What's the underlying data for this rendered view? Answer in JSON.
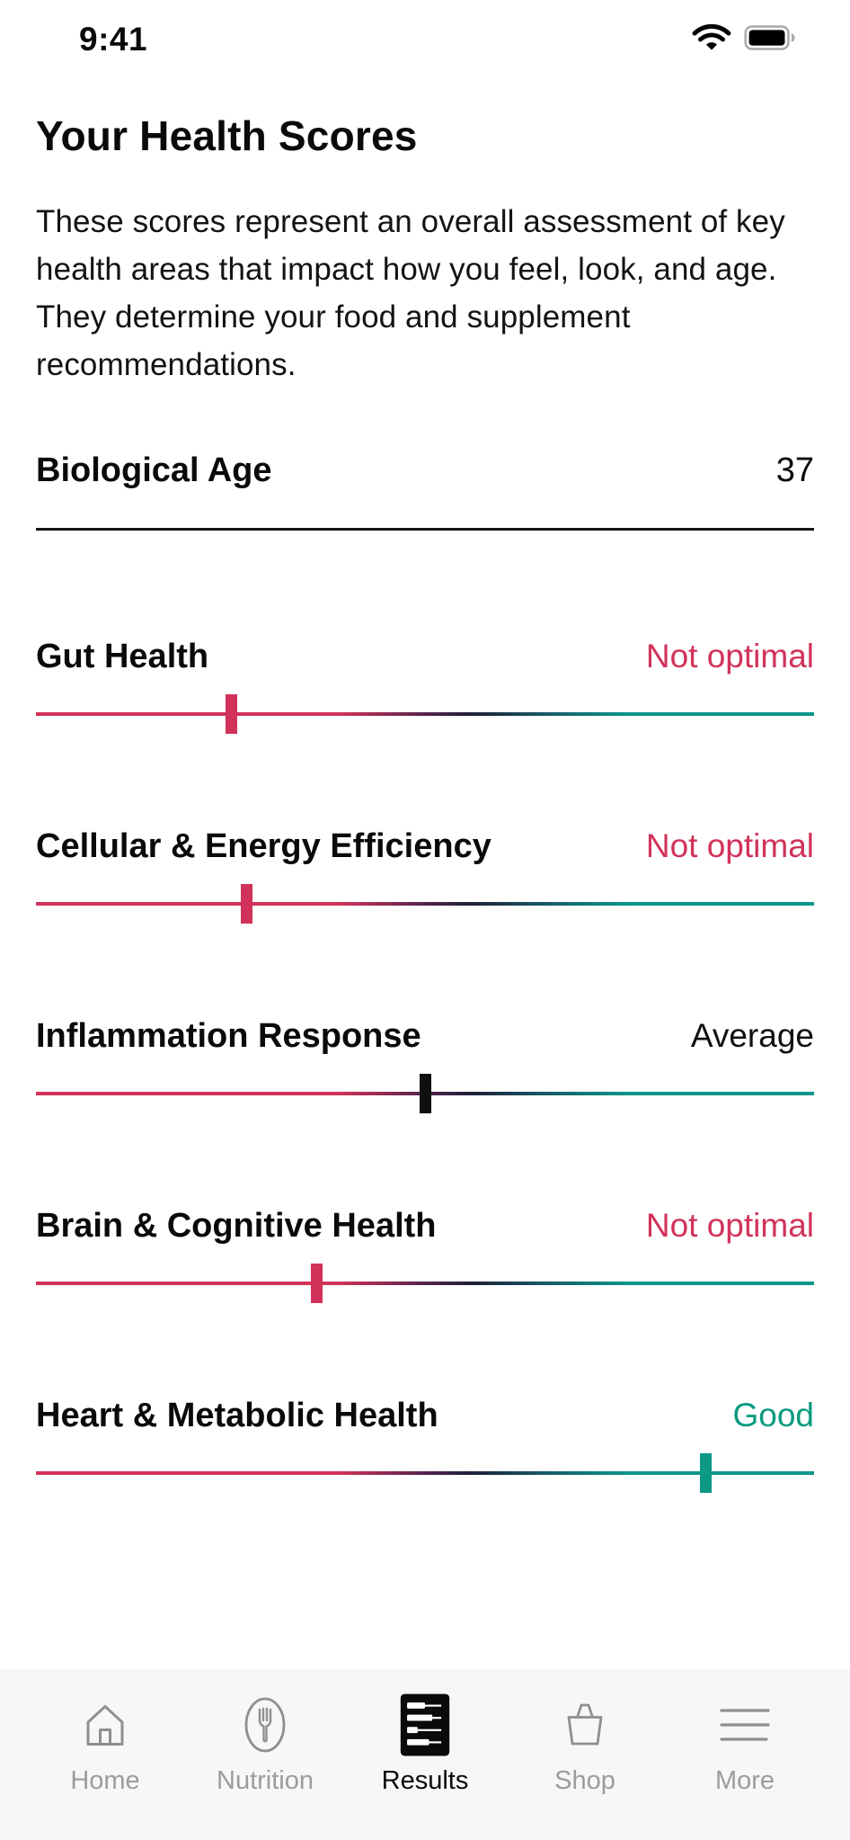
{
  "status_bar": {
    "time": "9:41"
  },
  "page": {
    "title": "Your Health Scores",
    "description": "These scores represent an overall assessment of key health areas that impact how you feel, look, and age. They determine your food and supplement recommendations."
  },
  "biological_age": {
    "label": "Biological Age",
    "value": "37"
  },
  "scores": [
    {
      "label": "Gut Health",
      "status": "Not optimal",
      "status_color": "#d13259",
      "marker_pct": 25,
      "marker_color": "#d13259"
    },
    {
      "label": "Cellular & Energy Efficiency",
      "status": "Not optimal",
      "status_color": "#d13259",
      "marker_pct": 27,
      "marker_color": "#d13259"
    },
    {
      "label": "Inflammation Response",
      "status": "Average",
      "status_color": "#101010",
      "marker_pct": 50,
      "marker_color": "#101010"
    },
    {
      "label": "Brain & Cognitive Health",
      "status": "Not optimal",
      "status_color": "#d13259",
      "marker_pct": 36,
      "marker_color": "#d13259"
    },
    {
      "label": "Heart & Metabolic Health",
      "status": "Good",
      "status_color": "#0a9a80",
      "marker_pct": 86,
      "marker_color": "#0d9a85"
    }
  ],
  "slider_colors": {
    "low": "#d13259",
    "mid": "#1e2038",
    "high": "#0a968a"
  },
  "tab_bar": {
    "items": [
      {
        "label": "Home",
        "icon": "home-icon",
        "active": false
      },
      {
        "label": "Nutrition",
        "icon": "nutrition-icon",
        "active": false
      },
      {
        "label": "Results",
        "icon": "results-icon",
        "active": true
      },
      {
        "label": "Shop",
        "icon": "shop-icon",
        "active": false
      },
      {
        "label": "More",
        "icon": "more-icon",
        "active": false
      }
    ]
  }
}
